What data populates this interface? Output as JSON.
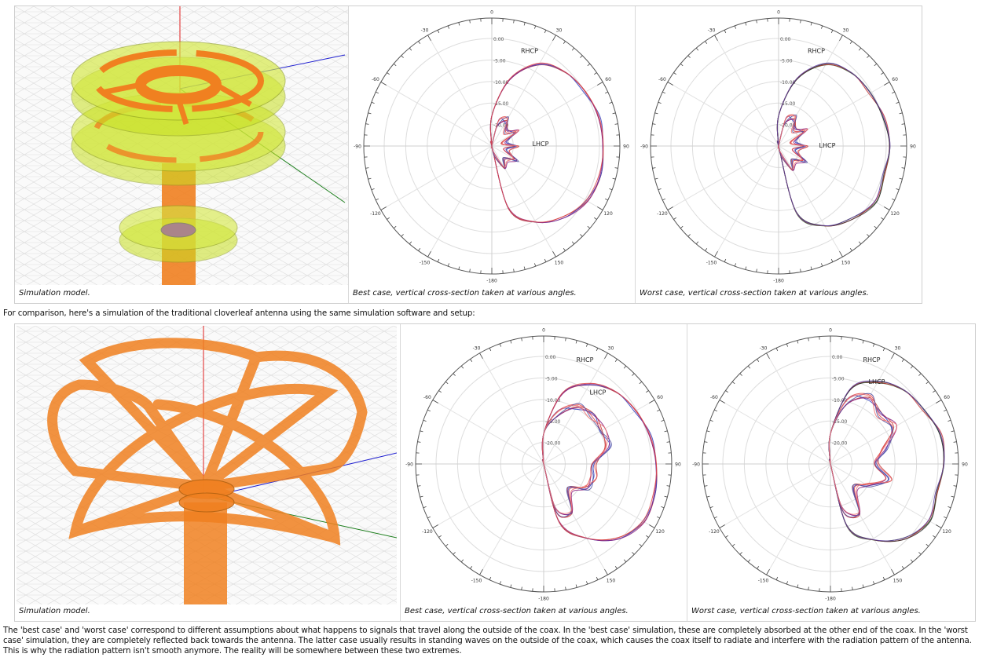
{
  "row1": {
    "captions": [
      "Simulation model.",
      "Best case, vertical cross-section taken at various angles.",
      "Worst case, vertical cross-section taken at various angles."
    ]
  },
  "intro_text": "For comparison, here's a simulation of the traditional cloverleaf antenna using the same simulation software and setup:",
  "row2": {
    "captions": [
      "Simulation model.",
      "Best case, vertical cross-section taken at various angles.",
      "Worst case, vertical cross-section taken at various angles."
    ]
  },
  "paragraph": "The 'best case' and 'worst case' correspond to different assumptions about what happens to signals that travel along the outside of the coax. In the 'best case' simulation, these are completely absorbed at the other end of the coax. In the 'worst case' simulation, they are completely reflected back towards the antenna. The latter case usually results in standing waves on the outside of the coax, which causes the coax itself to radiate and interfere with the radiation pattern of the antenna. This is why the radiation pattern isn't smooth anymore. The reality will be somewhere between these two extremes.",
  "axis_colors": {
    "z": "#e02020",
    "x": "#2020d0",
    "y": "#208020"
  },
  "model_colors": {
    "dielectric": "#c8e020",
    "copper": "#f08020"
  },
  "chart_data": [
    {
      "type": "polar",
      "name": "top-best",
      "angle_labels": [
        "0",
        "30",
        "60",
        "90",
        "120",
        "150",
        "-180",
        "-150",
        "-120",
        "-90",
        "-60",
        "-30"
      ],
      "radial_labels": [
        "0.00",
        "-5.00",
        "-10.00",
        "-15.00",
        "-20.00"
      ],
      "rlim_db": [
        -25,
        5
      ],
      "angles": [
        0,
        15,
        30,
        45,
        60,
        75,
        90,
        105,
        120,
        135,
        150,
        165,
        180
      ],
      "series": [
        {
          "name": "RHCP",
          "values": [
            -18,
            -9,
            -3,
            -1,
            0,
            0.8,
            1,
            1,
            0.5,
            -1.5,
            -4.5,
            -10,
            -25
          ]
        },
        {
          "name": "LHCP",
          "values": [
            -25,
            -19.5,
            -18,
            -20.5,
            -18.5,
            -22,
            -19,
            -21.5,
            -18.5,
            -20.5,
            -19.5,
            -23,
            -25
          ]
        }
      ]
    },
    {
      "type": "polar",
      "name": "top-worst",
      "angle_labels": [
        "0",
        "30",
        "60",
        "90",
        "120",
        "150",
        "-180",
        "-150",
        "-120",
        "-90",
        "-60",
        "-30"
      ],
      "radial_labels": [
        "0.00",
        "-5.00",
        "-10.00",
        "-15.00",
        "-20.00"
      ],
      "rlim_db": [
        -25,
        5
      ],
      "angles": [
        0,
        15,
        30,
        45,
        60,
        75,
        90,
        105,
        120,
        135,
        150,
        165,
        180
      ],
      "series": [
        {
          "name": "RHCP",
          "values": [
            -18,
            -9,
            -3,
            -1.2,
            -0.5,
            0.3,
            1,
            0.3,
            1,
            -1,
            -3.5,
            -9,
            -25
          ]
        },
        {
          "name": "LHCP",
          "values": [
            -25,
            -19,
            -17.5,
            -20,
            -18,
            -21.5,
            -18.5,
            -21,
            -18,
            -20,
            -19,
            -23,
            -25
          ]
        }
      ]
    },
    {
      "type": "polar",
      "name": "bottom-best",
      "angle_labels": [
        "0",
        "30",
        "60",
        "90",
        "120",
        "150",
        "-180",
        "-150",
        "-120",
        "-90",
        "-60",
        "-30"
      ],
      "radial_labels": [
        "0.00",
        "-5.00",
        "-10.00",
        "-15.00",
        "-20.00"
      ],
      "rlim_db": [
        -25,
        5
      ],
      "angles": [
        0,
        15,
        30,
        45,
        60,
        75,
        90,
        105,
        120,
        135,
        150,
        165,
        180
      ],
      "series": [
        {
          "name": "RHCP",
          "values": [
            -18,
            -8,
            -3.6,
            -1.5,
            -0.4,
            0.6,
            1.3,
            1.6,
            1.8,
            -0.5,
            -5,
            -11,
            -25
          ]
        },
        {
          "name": "LHCP",
          "values": [
            -18,
            -13,
            -9.5,
            -9.3,
            -9.3,
            -9.5,
            -13,
            -13,
            -13.6,
            -16.5,
            -12.4,
            -13.8,
            -25
          ]
        }
      ]
    },
    {
      "type": "polar",
      "name": "bottom-worst",
      "angle_labels": [
        "0",
        "30",
        "60",
        "90",
        "120",
        "150",
        "-180",
        "-150",
        "-120",
        "-90",
        "-60",
        "-30"
      ],
      "radial_labels": [
        "0.00",
        "-5.00",
        "-10.00",
        "-15.00",
        "-20.00"
      ],
      "rlim_db": [
        -25,
        5
      ],
      "angles": [
        0,
        15,
        30,
        45,
        60,
        75,
        90,
        105,
        120,
        135,
        150,
        165,
        180
      ],
      "series": [
        {
          "name": "RHCP",
          "values": [
            -18,
            -7,
            -3,
            -1,
            0,
            1.5,
            1.5,
            0.5,
            1.5,
            -0.5,
            -4.5,
            -10,
            -25
          ]
        },
        {
          "name": "LHCP",
          "values": [
            -18,
            -10,
            -7,
            -9,
            -8,
            -12,
            -14,
            -11,
            -15,
            -17,
            -12,
            -14,
            -25
          ]
        }
      ]
    }
  ]
}
